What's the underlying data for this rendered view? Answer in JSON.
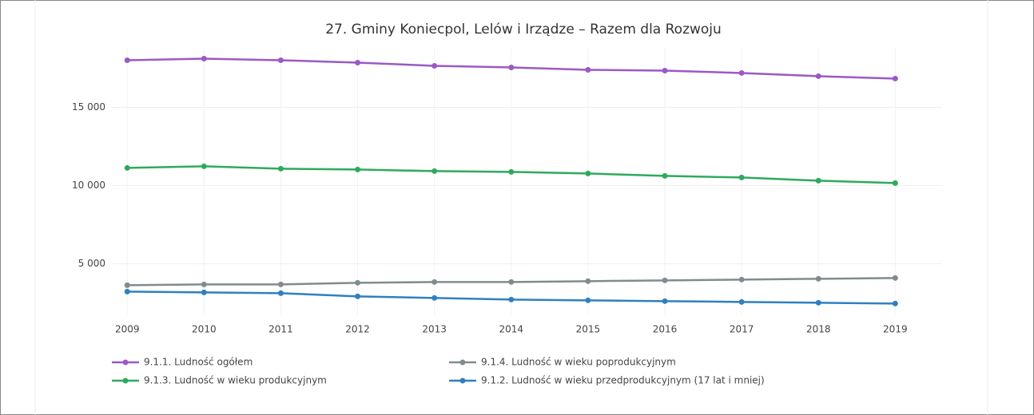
{
  "chart_data": {
    "type": "line",
    "title": "27. Gminy Koniecpol, Lelów  i Irządze – Razem dla Rozwoju",
    "x": [
      2009,
      2010,
      2011,
      2012,
      2013,
      2014,
      2015,
      2016,
      2017,
      2018,
      2019
    ],
    "xlim": [
      2008.8,
      2019.6
    ],
    "xticks": [
      2009,
      2010,
      2011,
      2012,
      2013,
      2014,
      2015,
      2016,
      2017,
      2018,
      2019
    ],
    "ylim": [
      1700,
      18800
    ],
    "yticks": [
      {
        "value": 5000,
        "label": "5 000"
      },
      {
        "value": 10000,
        "label": "10 000"
      },
      {
        "value": 15000,
        "label": "15 000"
      }
    ],
    "grid": true,
    "series": [
      {
        "name": "9.1.1. Ludność ogółem",
        "color": "#9b59c6",
        "values": [
          18010,
          18112,
          18010,
          17857,
          17653,
          17551,
          17398,
          17347,
          17194,
          16990,
          16837
        ]
      },
      {
        "name": "9.1.3. Ludność w wieku produkcyjnym",
        "color": "#2eaa5c",
        "values": [
          11122,
          11224,
          11071,
          11020,
          10918,
          10867,
          10765,
          10612,
          10510,
          10306,
          10153
        ]
      },
      {
        "name": "9.1.4. Ludność w wieku poprodukcyjnym",
        "color": "#7f8c8d",
        "values": [
          3622,
          3673,
          3673,
          3776,
          3827,
          3827,
          3878,
          3929,
          3980,
          4031,
          4082
        ]
      },
      {
        "name": "9.1.2. Ludność w wieku przedprodukcyjnym (17 lat i  mniej)",
        "color": "#2f80c0",
        "values": [
          3214,
          3163,
          3112,
          2908,
          2806,
          2704,
          2653,
          2602,
          2551,
          2500,
          2449
        ]
      }
    ]
  }
}
